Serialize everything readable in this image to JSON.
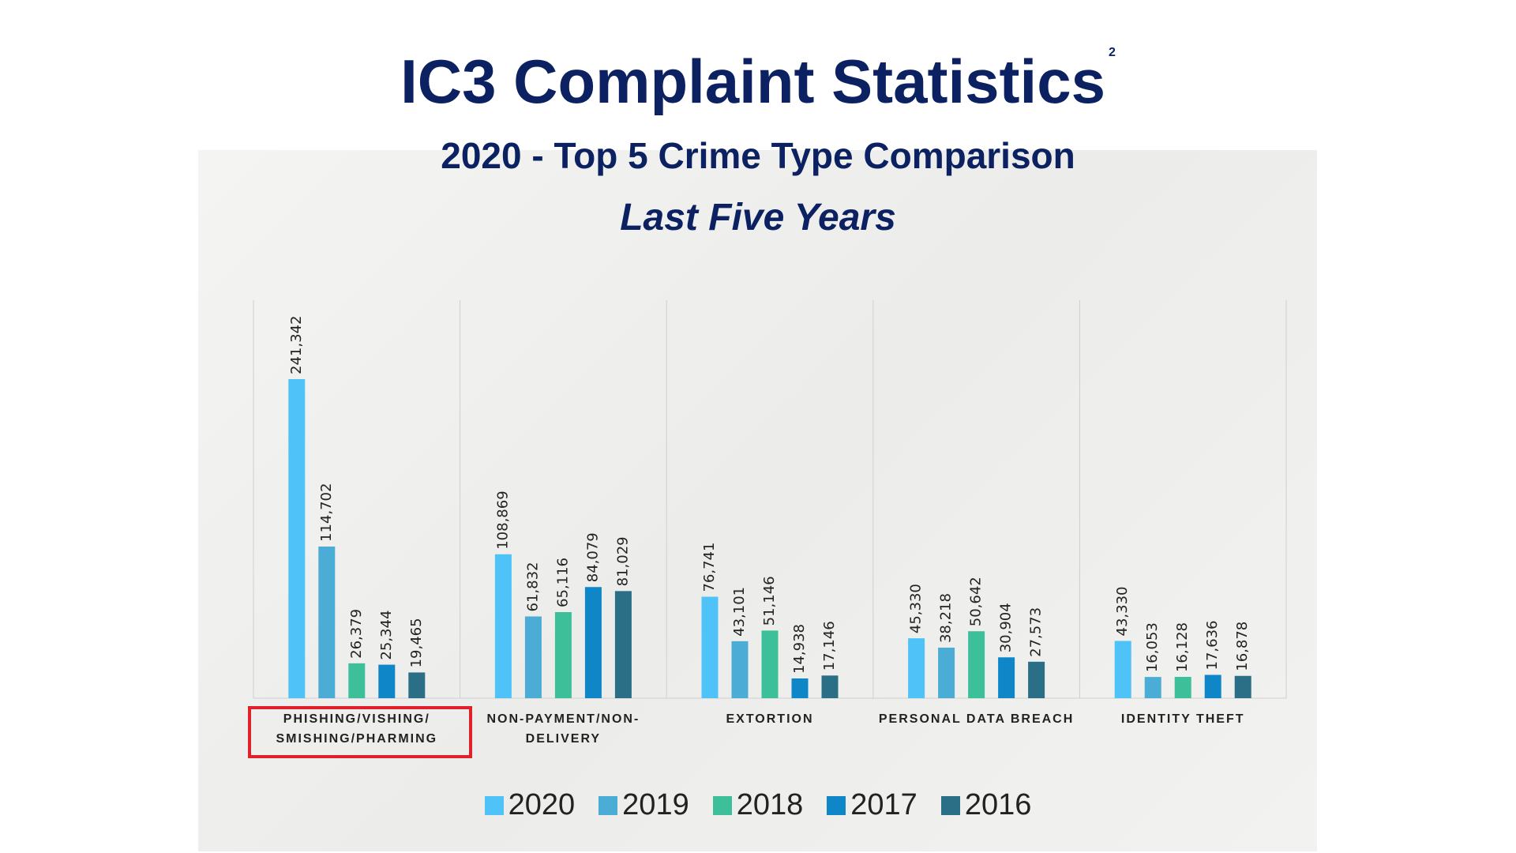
{
  "chart_data": {
    "type": "bar",
    "title": "IC3 Complaint Statistics",
    "title_footnote": "2",
    "subtitle": "2020 - Top 5 Crime Type Comparison",
    "subtitle2": "Last Five Years",
    "categories": [
      "PHISHING/VISHING/SMISHING/PHARMING",
      "NON-PAYMENT/NON-DELIVERY",
      "EXTORTION",
      "PERSONAL DATA BREACH",
      "IDENTITY THEFT"
    ],
    "highlight_category": 0,
    "series": [
      {
        "name": "2020",
        "color": "#4fc3f7",
        "values": [
          241342,
          108869,
          76741,
          45330,
          43330
        ],
        "value_labels": [
          "241,342",
          "108,869",
          "76,741",
          "45,330",
          "43,330"
        ]
      },
      {
        "name": "2019",
        "color": "#4bacd6",
        "values": [
          114702,
          61832,
          43101,
          38218,
          16053
        ],
        "value_labels": [
          "114,702",
          "61,832",
          "43,101",
          "38,218",
          "16,053"
        ]
      },
      {
        "name": "2018",
        "color": "#3dbf9a",
        "values": [
          26379,
          65116,
          51146,
          50642,
          16128
        ],
        "value_labels": [
          "26,379",
          "65,116",
          "51,146",
          "50,642",
          "16,128"
        ]
      },
      {
        "name": "2017",
        "color": "#0e86c8",
        "values": [
          25344,
          84079,
          14938,
          30904,
          17636
        ],
        "value_labels": [
          "25,344",
          "84,079",
          "14,938",
          "30,904",
          "17,636"
        ]
      },
      {
        "name": "2016",
        "color": "#2a6f86",
        "values": [
          19465,
          81029,
          17146,
          27573,
          16878
        ],
        "value_labels": [
          "19,465",
          "81,029",
          "17,146",
          "27,573",
          "16,878"
        ]
      }
    ]
  }
}
